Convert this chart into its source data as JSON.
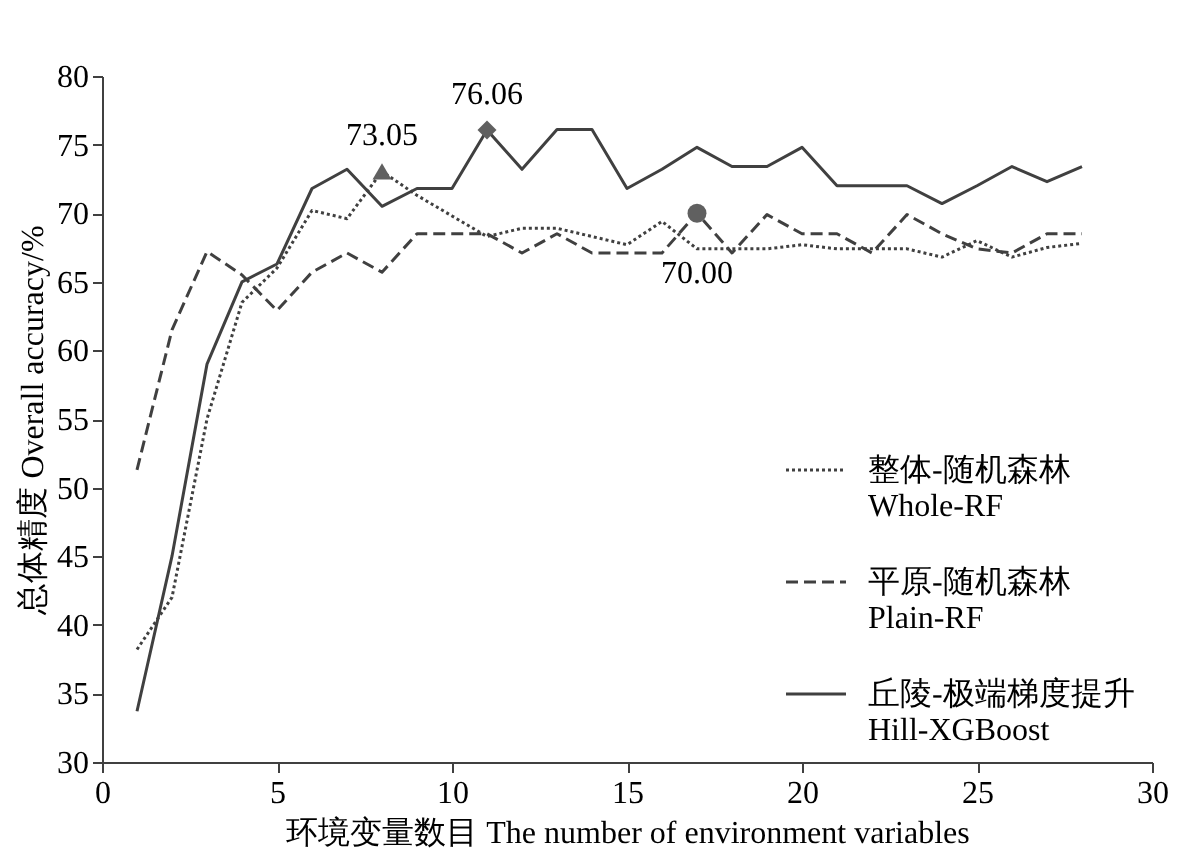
{
  "chart_data": {
    "type": "line",
    "xlabel": "环境变量数目 The number of environment variables",
    "ylabel": "总体精度 Overall accuracy/%",
    "xlim": [
      0,
      30
    ],
    "xticks": [
      0,
      5,
      10,
      15,
      20,
      25,
      30
    ],
    "ylim": [
      30,
      80
    ],
    "yticks": [
      30,
      35,
      40,
      45,
      50,
      55,
      60,
      65,
      70,
      75,
      80
    ],
    "grid": false,
    "legend": "bottom right",
    "x": [
      1,
      2,
      3,
      4,
      5,
      6,
      7,
      8,
      9,
      10,
      11,
      12,
      13,
      14,
      15,
      16,
      17,
      18,
      19,
      20,
      21,
      22,
      23,
      24,
      25,
      26,
      27,
      28
    ],
    "series": [
      {
        "name": "整体-随机森林\nWhole-RF",
        "color": "#404040",
        "line_style": "dotted",
        "values": [
          38.2,
          42,
          55,
          63.5,
          66,
          70.2,
          69.6,
          73.05,
          71.3,
          69.8,
          68.3,
          68.9,
          68.9,
          68.3,
          67.7,
          69.4,
          67.4,
          67.4,
          67.4,
          67.7,
          67.4,
          67.4,
          67.4,
          66.8,
          68.0,
          66.8,
          67.5,
          67.8
        ]
      },
      {
        "name": "平原-随机森林\nPlain-RF",
        "color": "#404040",
        "line_style": "dashed",
        "values": [
          51.3,
          61.5,
          67.2,
          65.5,
          62.9,
          65.7,
          67.1,
          65.7,
          68.5,
          68.5,
          68.5,
          67.1,
          68.5,
          67.1,
          67.1,
          67.1,
          70.0,
          67.1,
          69.9,
          68.5,
          68.5,
          67.1,
          69.9,
          68.5,
          67.4,
          67.1,
          68.5,
          68.5
        ]
      },
      {
        "name": "丘陵-极端梯度提升\nHill-XGBoost",
        "color": "#404040",
        "line_style": "solid",
        "values": [
          33.7,
          45,
          59,
          65,
          66.3,
          71.8,
          73.2,
          70.5,
          71.8,
          71.8,
          76.06,
          73.2,
          76.1,
          76.1,
          71.8,
          73.2,
          74.8,
          73.4,
          73.4,
          74.8,
          72.0,
          72.0,
          72.0,
          70.7,
          72.0,
          73.4,
          72.3,
          73.4
        ]
      },
      {
        "type": "scatter",
        "marker": "triangle",
        "color": "#606060",
        "x": [
          8
        ],
        "values": [
          73.05
        ]
      },
      {
        "type": "scatter",
        "marker": "diamond",
        "color": "#606060",
        "x": [
          11
        ],
        "values": [
          76.06
        ]
      },
      {
        "type": "scatter",
        "marker": "circle",
        "color": "#606060",
        "x": [
          17
        ],
        "values": [
          70.0
        ]
      }
    ],
    "annotations": [
      {
        "text": "73.05",
        "x": 8,
        "y": 73.05
      },
      {
        "text": "76.06",
        "x": 11,
        "y": 76.06
      },
      {
        "text": "70.00",
        "x": 17,
        "y": 70.0
      }
    ]
  }
}
